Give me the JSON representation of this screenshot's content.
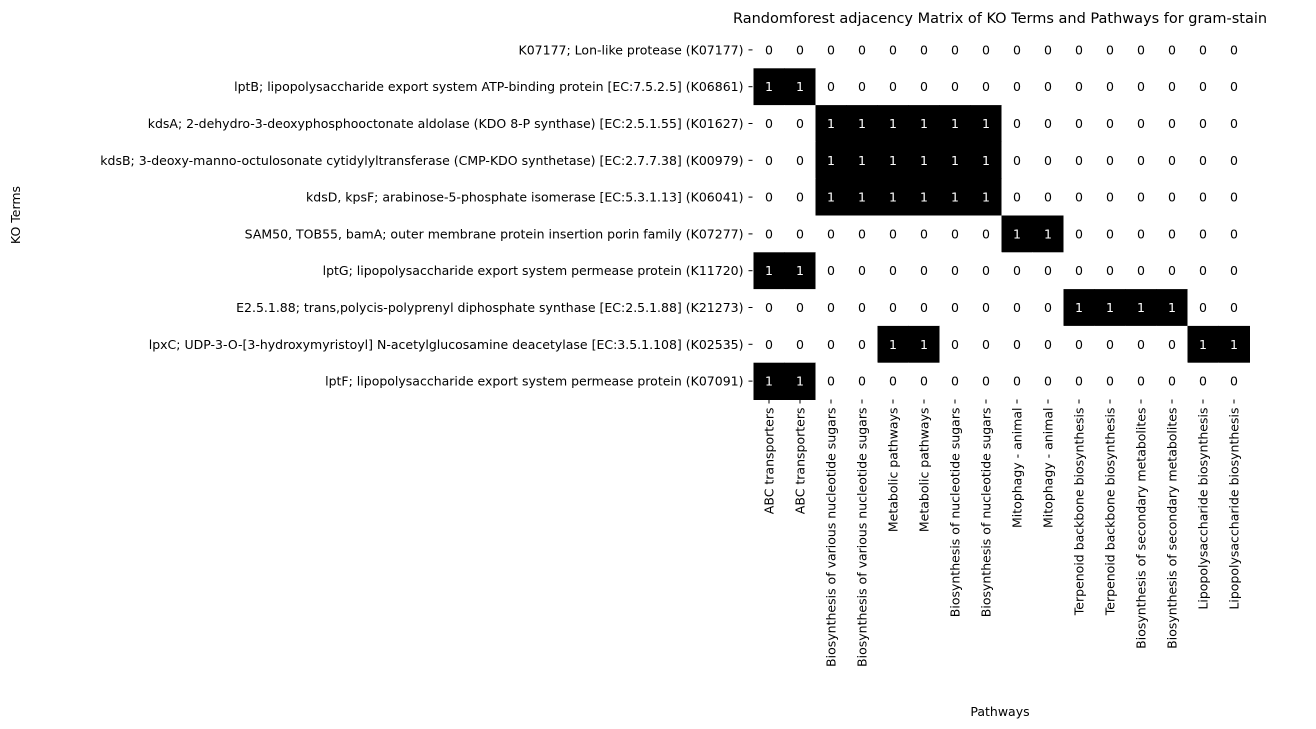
{
  "chart_data": {
    "type": "heatmap",
    "title": "Randomforest adjacency Matrix of KO Terms and Pathways for gram-stain",
    "xlabel": "Pathways",
    "ylabel": "KO Terms",
    "colormap": {
      "0": "#ffffff",
      "1": "#000000"
    },
    "rows": [
      "K07177; Lon-like protease (K07177)",
      "lptB; lipopolysaccharide export system ATP-binding protein [EC:7.5.2.5] (K06861)",
      "kdsA; 2-dehydro-3-deoxyphosphooctonate aldolase (KDO 8-P synthase) [EC:2.5.1.55] (K01627)",
      "kdsB; 3-deoxy-manno-octulosonate cytidylyltransferase (CMP-KDO synthetase) [EC:2.7.7.38] (K00979)",
      "kdsD, kpsF; arabinose-5-phosphate isomerase [EC:5.3.1.13] (K06041)",
      "SAM50, TOB55, bamA; outer membrane protein insertion porin family (K07277)",
      "lptG; lipopolysaccharide export system permease protein (K11720)",
      "E2.5.1.88; trans,polycis-polyprenyl diphosphate synthase [EC:2.5.1.88] (K21273)",
      "lpxC; UDP-3-O-[3-hydroxymyristoyl] N-acetylglucosamine deacetylase [EC:3.5.1.108] (K02535)",
      "lptF; lipopolysaccharide export system permease protein (K07091)"
    ],
    "columns": [
      "ABC transporters",
      "ABC transporters",
      "Biosynthesis of various nucleotide sugars",
      "Biosynthesis of various nucleotide sugars",
      "Metabolic pathways",
      "Metabolic pathways",
      "Biosynthesis of nucleotide sugars",
      "Biosynthesis of nucleotide sugars",
      "Mitophagy - animal",
      "Mitophagy - animal",
      "Terpenoid backbone biosynthesis",
      "Terpenoid backbone biosynthesis",
      "Biosynthesis of secondary metabolites",
      "Biosynthesis of secondary metabolites",
      "Lipopolysaccharide biosynthesis",
      "Lipopolysaccharide biosynthesis"
    ],
    "values": [
      [
        0,
        0,
        0,
        0,
        0,
        0,
        0,
        0,
        0,
        0,
        0,
        0,
        0,
        0,
        0,
        0
      ],
      [
        1,
        1,
        0,
        0,
        0,
        0,
        0,
        0,
        0,
        0,
        0,
        0,
        0,
        0,
        0,
        0
      ],
      [
        0,
        0,
        1,
        1,
        1,
        1,
        1,
        1,
        0,
        0,
        0,
        0,
        0,
        0,
        0,
        0
      ],
      [
        0,
        0,
        1,
        1,
        1,
        1,
        1,
        1,
        0,
        0,
        0,
        0,
        0,
        0,
        0,
        0
      ],
      [
        0,
        0,
        1,
        1,
        1,
        1,
        1,
        1,
        0,
        0,
        0,
        0,
        0,
        0,
        0,
        0
      ],
      [
        0,
        0,
        0,
        0,
        0,
        0,
        0,
        0,
        1,
        1,
        0,
        0,
        0,
        0,
        0,
        0
      ],
      [
        1,
        1,
        0,
        0,
        0,
        0,
        0,
        0,
        0,
        0,
        0,
        0,
        0,
        0,
        0,
        0
      ],
      [
        0,
        0,
        0,
        0,
        0,
        0,
        0,
        0,
        0,
        0,
        1,
        1,
        1,
        1,
        0,
        0
      ],
      [
        0,
        0,
        0,
        0,
        1,
        1,
        0,
        0,
        0,
        0,
        0,
        0,
        0,
        0,
        1,
        1
      ],
      [
        1,
        1,
        0,
        0,
        0,
        0,
        0,
        0,
        0,
        0,
        0,
        0,
        0,
        0,
        0,
        0
      ]
    ]
  }
}
